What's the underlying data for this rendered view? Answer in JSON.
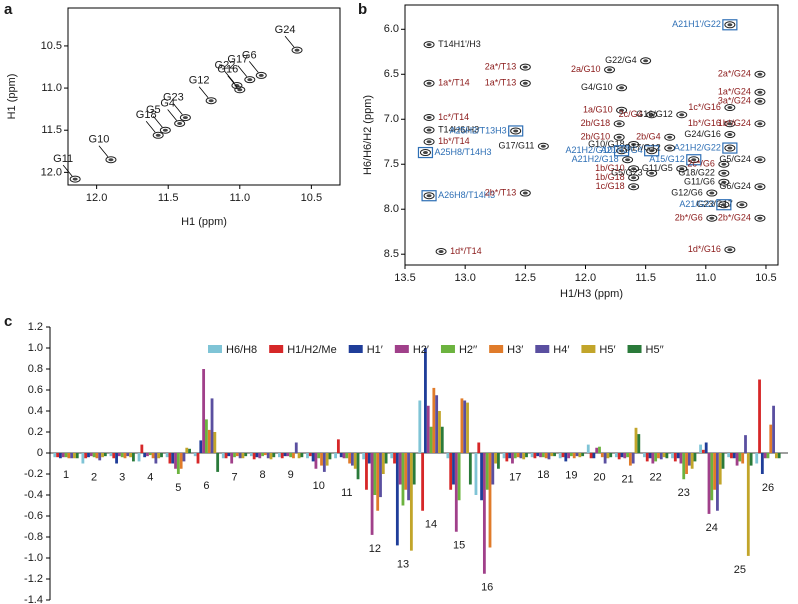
{
  "chart_data": [
    {
      "type": "nmr",
      "panel_label": "a",
      "xlabel": "H1 (ppm)",
      "ylabel": "H1 (ppm)",
      "xlim": [
        12.2,
        10.3
      ],
      "ylim": [
        12.15,
        10.05
      ],
      "xticks": [
        {
          "value": 12,
          "label": "12.0"
        },
        11.5,
        {
          "value": 11,
          "label": "11.0"
        },
        10.5
      ],
      "yticks": [
        10.5,
        {
          "value": 11,
          "label": "11.0"
        },
        11.5,
        {
          "value": 12,
          "label": "12.0"
        }
      ],
      "peaks": [
        {
          "label": "G24",
          "x": 10.6,
          "y": 10.55,
          "color": "#1a1a1a",
          "boxed": false
        },
        {
          "label": "G17",
          "x": 10.93,
          "y": 10.9,
          "color": "#1a1a1a",
          "boxed": false
        },
        {
          "label": "G22",
          "x": 11.02,
          "y": 10.97,
          "color": "#1a1a1a",
          "boxed": false
        },
        {
          "label": "G6",
          "x": 10.85,
          "y": 10.85,
          "color": "#1a1a1a",
          "boxed": false
        },
        {
          "label": "G16",
          "x": 11.0,
          "y": 11.02,
          "color": "#1a1a1a",
          "boxed": false
        },
        {
          "label": "G12",
          "x": 11.2,
          "y": 11.15,
          "color": "#1a1a1a",
          "boxed": false
        },
        {
          "label": "G23",
          "x": 11.38,
          "y": 11.35,
          "color": "#1a1a1a",
          "boxed": false
        },
        {
          "label": "G4",
          "x": 11.42,
          "y": 11.42,
          "color": "#1a1a1a",
          "boxed": false
        },
        {
          "label": "G5",
          "x": 11.52,
          "y": 11.5,
          "color": "#1a1a1a",
          "boxed": false
        },
        {
          "label": "G18",
          "x": 11.57,
          "y": 11.56,
          "color": "#1a1a1a",
          "boxed": false
        },
        {
          "label": "G10",
          "x": 11.9,
          "y": 11.85,
          "color": "#1a1a1a",
          "boxed": false
        },
        {
          "label": "G11",
          "x": 12.15,
          "y": 12.08,
          "color": "#1a1a1a",
          "boxed": false
        }
      ]
    },
    {
      "type": "nmr",
      "panel_label": "b",
      "xlabel": "H1/H3 (ppm)",
      "ylabel": "H6/H6/H2 (ppm)",
      "xlim": [
        13.5,
        10.4
      ],
      "ylim": [
        8.62,
        5.73
      ],
      "xticks": [
        13.5,
        {
          "value": 13,
          "label": "13.0"
        },
        12.5,
        {
          "value": 12,
          "label": "12.0"
        },
        11.5,
        {
          "value": 11,
          "label": "11.0"
        },
        10.5
      ],
      "yticks": [
        {
          "value": 6,
          "label": "6.0"
        },
        6.5,
        {
          "value": 7,
          "label": "7.0"
        },
        7.5,
        {
          "value": 8,
          "label": "8.0"
        },
        8.5
      ],
      "peaks": [
        {
          "label": "T14H1'/H3",
          "x": 13.3,
          "y": 6.17,
          "color": "#1a1a1a",
          "boxed": false
        },
        {
          "label": "1a*/T14",
          "x": 13.3,
          "y": 6.6,
          "color": "#8b1a1a",
          "boxed": false
        },
        {
          "label": "1c*/T14",
          "x": 13.3,
          "y": 6.98,
          "color": "#8b1a1a",
          "boxed": false
        },
        {
          "label": "T14H6/H3",
          "x": 13.3,
          "y": 7.12,
          "color": "#1a1a1a",
          "boxed": false
        },
        {
          "label": "1b*/T14",
          "x": 13.3,
          "y": 7.25,
          "color": "#8b1a1a",
          "boxed": false
        },
        {
          "label": "A25H8/T14H3",
          "x": 13.33,
          "y": 7.37,
          "color": "#2e6fb5",
          "boxed": true
        },
        {
          "label": "A26H8/T14H3",
          "x": 13.3,
          "y": 7.85,
          "color": "#2e6fb5",
          "boxed": true
        },
        {
          "label": "1d*/T14",
          "x": 13.2,
          "y": 8.47,
          "color": "#8b1a1a",
          "boxed": false
        },
        {
          "label": "2a*/T13",
          "x": 12.5,
          "y": 6.42,
          "color": "#8b1a1a",
          "boxed": false
        },
        {
          "label": "1a*/T13",
          "x": 12.5,
          "y": 6.6,
          "color": "#8b1a1a",
          "boxed": false
        },
        {
          "label": "A25H2/T13H3",
          "x": 12.58,
          "y": 7.13,
          "color": "#2e6fb5",
          "boxed": true
        },
        {
          "label": "G17/G11",
          "x": 12.35,
          "y": 7.3,
          "color": "#1a1a1a",
          "boxed": false
        },
        {
          "label": "2b*/T13",
          "x": 12.5,
          "y": 7.82,
          "color": "#8b1a1a",
          "boxed": false
        },
        {
          "label": "G22/G4",
          "x": 11.5,
          "y": 6.35,
          "color": "#1a1a1a",
          "boxed": false
        },
        {
          "label": "2a/G10",
          "x": 11.8,
          "y": 6.45,
          "color": "#8b1a1a",
          "boxed": false
        },
        {
          "label": "G4/G10",
          "x": 11.7,
          "y": 6.65,
          "color": "#1a1a1a",
          "boxed": false
        },
        {
          "label": "1a/G10",
          "x": 11.7,
          "y": 6.9,
          "color": "#8b1a1a",
          "boxed": false
        },
        {
          "label": "2c/G4",
          "x": 11.45,
          "y": 6.95,
          "color": "#8b1a1a",
          "boxed": false
        },
        {
          "label": "2b/G18",
          "x": 11.72,
          "y": 7.05,
          "color": "#8b1a1a",
          "boxed": false
        },
        {
          "label": "2b/G10",
          "x": 11.72,
          "y": 7.2,
          "color": "#8b1a1a",
          "boxed": false
        },
        {
          "label": "G10/G18",
          "x": 11.6,
          "y": 7.28,
          "color": "#1a1a1a",
          "boxed": false
        },
        {
          "label": "A21H2/G10",
          "x": 11.7,
          "y": 7.35,
          "color": "#2e6fb5",
          "boxed": true
        },
        {
          "label": "A21H2/G18",
          "x": 11.65,
          "y": 7.45,
          "color": "#2e6fb5",
          "boxed": false
        },
        {
          "label": "A21H2/G4",
          "x": 11.45,
          "y": 7.35,
          "color": "#2e6fb5",
          "boxed": true
        },
        {
          "label": "1b/G10",
          "x": 11.6,
          "y": 7.55,
          "color": "#8b1a1a",
          "boxed": false
        },
        {
          "label": "1b/G18",
          "x": 11.6,
          "y": 7.65,
          "color": "#8b1a1a",
          "boxed": false
        },
        {
          "label": "1c/G18",
          "x": 11.6,
          "y": 7.75,
          "color": "#8b1a1a",
          "boxed": false
        },
        {
          "label": "G5/G23",
          "x": 11.45,
          "y": 7.6,
          "color": "#1a1a1a",
          "boxed": false
        },
        {
          "label": "G11/G5",
          "x": 11.2,
          "y": 7.55,
          "color": "#1a1a1a",
          "boxed": false
        },
        {
          "label": "A15/G12",
          "x": 11.1,
          "y": 7.45,
          "color": "#2e6fb5",
          "boxed": true
        },
        {
          "label": "G17/G12",
          "x": 11.3,
          "y": 7.32,
          "color": "#1a1a1a",
          "boxed": false
        },
        {
          "label": "2b/G4",
          "x": 11.3,
          "y": 7.2,
          "color": "#8b1a1a",
          "boxed": false
        },
        {
          "label": "G16/G12",
          "x": 11.2,
          "y": 6.95,
          "color": "#1a1a1a",
          "boxed": false
        },
        {
          "label": "A21H1'/G22",
          "x": 10.8,
          "y": 5.95,
          "color": "#2e6fb5",
          "boxed": true
        },
        {
          "label": "2a*/G24",
          "x": 10.55,
          "y": 6.5,
          "color": "#8b1a1a",
          "boxed": false
        },
        {
          "label": "1a*/G24",
          "x": 10.55,
          "y": 6.7,
          "color": "#8b1a1a",
          "boxed": false
        },
        {
          "label": "3a*/G24",
          "x": 10.55,
          "y": 6.8,
          "color": "#8b1a1a",
          "boxed": false
        },
        {
          "label": "1c*/G16",
          "x": 10.8,
          "y": 6.87,
          "color": "#8b1a1a",
          "boxed": false
        },
        {
          "label": "1b*/G16",
          "x": 10.8,
          "y": 7.05,
          "color": "#8b1a1a",
          "boxed": false
        },
        {
          "label": "1b*/G24",
          "x": 10.55,
          "y": 7.05,
          "color": "#8b1a1a",
          "boxed": false
        },
        {
          "label": "G24/G16",
          "x": 10.8,
          "y": 7.17,
          "color": "#1a1a1a",
          "boxed": false
        },
        {
          "label": "A21H2/G22",
          "x": 10.8,
          "y": 7.32,
          "color": "#2e6fb5",
          "boxed": true
        },
        {
          "label": "2c*/G6",
          "x": 10.85,
          "y": 7.5,
          "color": "#8b1a1a",
          "boxed": false
        },
        {
          "label": "G5/G24",
          "x": 10.55,
          "y": 7.45,
          "color": "#1a1a1a",
          "boxed": false
        },
        {
          "label": "G18/G22",
          "x": 10.85,
          "y": 7.6,
          "color": "#1a1a1a",
          "boxed": false
        },
        {
          "label": "G11/G6",
          "x": 10.85,
          "y": 7.7,
          "color": "#1a1a1a",
          "boxed": false
        },
        {
          "label": "G6/G24",
          "x": 10.55,
          "y": 7.75,
          "color": "#1a1a1a",
          "boxed": false
        },
        {
          "label": "G12/G6",
          "x": 10.95,
          "y": 7.82,
          "color": "#1a1a1a",
          "boxed": false
        },
        {
          "label": "G23/G17",
          "x": 10.7,
          "y": 7.95,
          "color": "#1a1a1a",
          "boxed": false
        },
        {
          "label": "A21/G22",
          "x": 10.85,
          "y": 7.95,
          "color": "#2e6fb5",
          "boxed": true
        },
        {
          "label": "2b*/G6",
          "x": 10.95,
          "y": 8.1,
          "color": "#8b1a1a",
          "boxed": false
        },
        {
          "label": "2b*/G24",
          "x": 10.55,
          "y": 8.1,
          "color": "#8b1a1a",
          "boxed": false
        },
        {
          "label": "1d*/G16",
          "x": 10.8,
          "y": 8.45,
          "color": "#8b1a1a",
          "boxed": false
        }
      ]
    },
    {
      "type": "bar",
      "panel_label": "c",
      "categories": [
        "1",
        "2",
        "3",
        "4",
        "5",
        "6",
        "7",
        "8",
        "9",
        "10",
        "11",
        "12",
        "13",
        "14",
        "15",
        "16",
        "17",
        "18",
        "19",
        "20",
        "21",
        "22",
        "23",
        "24",
        "25",
        "26"
      ],
      "ylim": [
        -1.4,
        1.2
      ],
      "yticks": [
        1.2,
        {
          "value": 1,
          "label": "1.0"
        },
        0.8,
        0.6,
        0.4,
        0.2,
        0,
        -0.2,
        -0.4,
        -0.6,
        -0.8,
        {
          "value": -1,
          "label": "-1.0"
        },
        -1.2,
        -1.4
      ],
      "series": [
        {
          "name": "H6/H8",
          "color": "#7fc4d6",
          "values": [
            -0.04,
            -0.1,
            -0.03,
            -0.08,
            -0.04,
            -0.03,
            -0.05,
            -0.03,
            -0.04,
            -0.05,
            -0.05,
            -0.06,
            -0.05,
            0.5,
            -0.05,
            -0.4,
            -0.05,
            -0.04,
            -0.05,
            0.08,
            -0.04,
            -0.04,
            -0.05,
            0.08,
            -0.04,
            -0.1
          ]
        },
        {
          "name": "H1/H2/Me",
          "color": "#d62728",
          "values": [
            -0.04,
            -0.05,
            -0.05,
            0.08,
            -0.1,
            -0.1,
            -0.05,
            -0.06,
            -0.05,
            -0.03,
            0.13,
            -0.35,
            -0.1,
            -0.55,
            -0.35,
            0.1,
            -0.08,
            -0.05,
            -0.04,
            -0.05,
            -0.06,
            -0.08,
            -0.08,
            0.03,
            -0.05,
            0.7
          ]
        },
        {
          "name": "H1′",
          "color": "#1f3d99",
          "values": [
            -0.05,
            -0.04,
            -0.1,
            -0.04,
            -0.1,
            0.12,
            -0.03,
            -0.04,
            -0.03,
            -0.08,
            -0.04,
            -0.1,
            -0.88,
            1.0,
            -0.3,
            -0.45,
            -0.05,
            -0.03,
            -0.08,
            -0.05,
            -0.04,
            -0.05,
            -0.05,
            0.1,
            -0.05,
            -0.2
          ]
        },
        {
          "name": "H2′",
          "color": "#a0408a",
          "values": [
            -0.04,
            -0.03,
            -0.03,
            -0.03,
            -0.15,
            0.8,
            -0.1,
            -0.05,
            -0.03,
            -0.15,
            -0.05,
            -0.78,
            -0.3,
            0.45,
            -0.75,
            -1.15,
            -0.1,
            -0.04,
            -0.05,
            0.05,
            -0.05,
            -0.1,
            -0.1,
            -0.58,
            -0.12,
            -0.05
          ]
        },
        {
          "name": "H2′′",
          "color": "#6cb33f",
          "values": [
            -0.04,
            -0.04,
            -0.04,
            -0.02,
            -0.2,
            0.32,
            -0.04,
            -0.03,
            -0.04,
            -0.05,
            -0.05,
            -0.4,
            -0.5,
            0.25,
            -0.45,
            -0.35,
            -0.05,
            -0.04,
            -0.03,
            0.06,
            -0.04,
            -0.08,
            -0.25,
            -0.45,
            -0.08,
            -0.05
          ]
        },
        {
          "name": "H3′",
          "color": "#e07b2a",
          "values": [
            -0.05,
            -0.05,
            -0.05,
            -0.05,
            -0.15,
            0.22,
            -0.03,
            -0.02,
            -0.05,
            -0.12,
            -0.1,
            -0.55,
            -0.35,
            0.62,
            0.52,
            -0.9,
            -0.04,
            -0.05,
            -0.05,
            -0.04,
            -0.12,
            -0.05,
            -0.2,
            -0.35,
            -0.1,
            0.27
          ]
        },
        {
          "name": "H4′",
          "color": "#5a4fa0",
          "values": [
            -0.05,
            -0.07,
            -0.03,
            -0.1,
            -0.08,
            0.52,
            -0.05,
            -0.05,
            0.1,
            -0.18,
            -0.12,
            -0.42,
            -0.45,
            0.55,
            0.5,
            -0.3,
            -0.05,
            -0.06,
            -0.03,
            -0.1,
            -0.1,
            -0.06,
            -0.12,
            -0.55,
            0.17,
            0.45
          ]
        },
        {
          "name": "H5′",
          "color": "#c2a52a",
          "values": [
            -0.05,
            -0.04,
            -0.04,
            -0.05,
            0.05,
            0.2,
            -0.05,
            -0.06,
            -0.05,
            -0.12,
            -0.15,
            -0.2,
            -0.93,
            0.4,
            0.48,
            -0.1,
            -0.06,
            -0.03,
            -0.04,
            -0.05,
            0.24,
            -0.04,
            -0.15,
            -0.3,
            -0.98,
            -0.05
          ]
        },
        {
          "name": "H5′′",
          "color": "#2a7a3a",
          "values": [
            -0.05,
            -0.03,
            -0.08,
            -0.04,
            0.04,
            -0.18,
            -0.03,
            -0.04,
            -0.04,
            -0.06,
            -0.25,
            -0.1,
            -0.3,
            0.25,
            -0.3,
            -0.15,
            -0.04,
            -0.03,
            -0.03,
            -0.04,
            0.18,
            -0.05,
            -0.08,
            -0.15,
            -0.12,
            -0.05
          ]
        }
      ]
    }
  ]
}
